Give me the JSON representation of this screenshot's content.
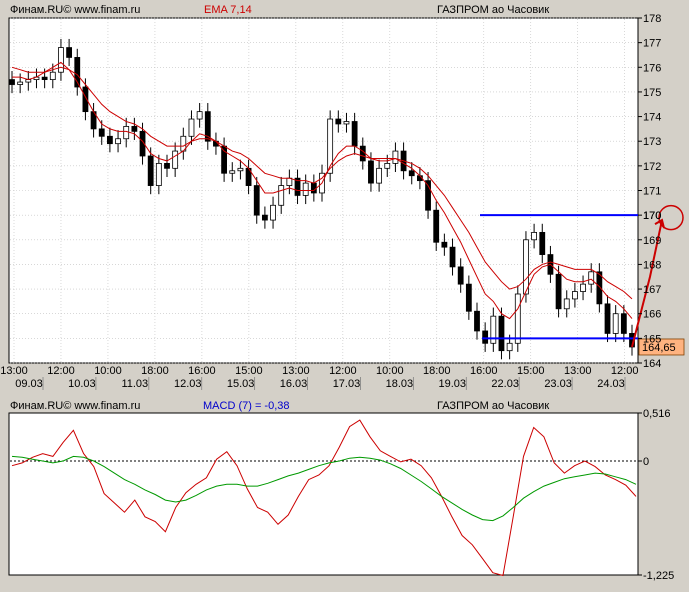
{
  "price_panel": {
    "source": "Финам.RU©  www.finam.ru",
    "indicator": "EMA 7,14",
    "instrument": "ГАЗПРОМ ао Часовик",
    "current_price": "164,65",
    "target_mark": "170"
  },
  "macd_panel": {
    "source": "Финам.RU©  www.finam.ru",
    "indicator": "MACD (7) = -0,38",
    "instrument": "ГАЗПРОМ ао Часовик"
  },
  "colors": {
    "background": "#ffffff",
    "frame": "#d4d0c8",
    "accent": "#cc0000",
    "blue": "#0000ff",
    "green": "#009900"
  },
  "chart_data": [
    {
      "type": "candlestick",
      "title": "ГАЗПРОМ ао Часовик",
      "indicators": [
        "EMA 7",
        "EMA 14"
      ],
      "ylim": [
        164,
        178
      ],
      "yticks": [
        "164",
        "165",
        "166",
        "167",
        "168",
        "169",
        "170",
        "171",
        "172",
        "173",
        "174",
        "175",
        "176",
        "177",
        "178"
      ],
      "xticks_time": [
        "13:00",
        "12:00",
        "10:00",
        "18:00",
        "16:00",
        "15:00",
        "13:00",
        "12:00",
        "10:00",
        "18:00",
        "16:00",
        "15:00",
        "13:00",
        "12:00"
      ],
      "xticks_date": [
        "09.03",
        "10.03",
        "11.03",
        "12.03",
        "15.03",
        "16.03",
        "17.03",
        "18.03",
        "19.03",
        "22.03",
        "23.03",
        "24.03"
      ],
      "close": [
        175.3,
        175.4,
        175.5,
        175.6,
        175.5,
        175.8,
        176.8,
        176.4,
        175.2,
        174.2,
        173.5,
        173.2,
        172.9,
        173.1,
        173.6,
        173.4,
        172.4,
        171.2,
        172.1,
        171.9,
        172.6,
        173.2,
        173.9,
        174.2,
        173.0,
        172.8,
        171.7,
        171.8,
        171.9,
        171.2,
        170.0,
        169.8,
        170.4,
        171.2,
        171.5,
        170.8,
        171.3,
        170.9,
        171.7,
        173.9,
        173.7,
        173.8,
        172.8,
        172.2,
        171.3,
        171.9,
        172.1,
        172.6,
        171.8,
        171.6,
        171.4,
        170.2,
        168.9,
        168.7,
        167.9,
        167.2,
        166.1,
        165.3,
        164.8,
        165.9,
        164.5,
        164.8,
        166.8,
        169.0,
        169.3,
        168.4,
        167.6,
        166.2,
        166.6,
        166.9,
        167.2,
        167.7,
        166.4,
        165.2,
        166.0,
        165.2,
        164.65
      ],
      "ema_fast": [
        175.6,
        175.6,
        175.5,
        175.6,
        175.8,
        176.0,
        176.2,
        175.9,
        175.4,
        174.8,
        174.2,
        173.7,
        173.5,
        173.4,
        173.4,
        173.3,
        173.0,
        172.5,
        172.3,
        172.2,
        172.4,
        172.6,
        173.0,
        173.3,
        173.2,
        173.0,
        172.6,
        172.4,
        172.2,
        171.9,
        171.4,
        170.9,
        170.9,
        171.0,
        171.1,
        171.0,
        171.0,
        171.0,
        171.3,
        172.0,
        172.5,
        172.8,
        172.8,
        172.6,
        172.3,
        172.2,
        172.2,
        172.3,
        172.1,
        171.9,
        171.6,
        171.2,
        170.6,
        170.1,
        169.5,
        168.9,
        168.2,
        167.5,
        166.8,
        166.5,
        166.0,
        165.8,
        166.2,
        166.9,
        167.6,
        167.9,
        168.0,
        167.7,
        167.4,
        167.3,
        167.3,
        167.4,
        167.1,
        166.7,
        166.5,
        166.2,
        165.8
      ],
      "ema_slow": [
        176.0,
        175.9,
        175.8,
        175.8,
        175.8,
        175.9,
        176.0,
        175.9,
        175.7,
        175.3,
        174.9,
        174.5,
        174.2,
        174.0,
        173.8,
        173.7,
        173.5,
        173.2,
        173.0,
        172.8,
        172.8,
        172.8,
        173.0,
        173.1,
        173.1,
        173.0,
        172.8,
        172.6,
        172.5,
        172.3,
        172.0,
        171.7,
        171.6,
        171.5,
        171.5,
        171.4,
        171.4,
        171.3,
        171.5,
        171.9,
        172.2,
        172.4,
        172.5,
        172.4,
        172.3,
        172.3,
        172.3,
        172.3,
        172.2,
        172.1,
        171.9,
        171.6,
        171.2,
        170.8,
        170.3,
        169.8,
        169.3,
        168.7,
        168.1,
        167.7,
        167.3,
        167.0,
        167.1,
        167.4,
        167.8,
        168.0,
        168.1,
        168.0,
        167.9,
        167.8,
        167.8,
        167.8,
        167.6,
        167.3,
        167.1,
        166.9,
        166.6
      ],
      "horizontal_levels": [
        170.0,
        165.0
      ],
      "current_value": 164.65
    },
    {
      "type": "line",
      "title": "MACD (7) = -0,38",
      "ylim": [
        -1.225,
        0.516
      ],
      "yticks": [
        "0,516",
        "0",
        "-1,225"
      ],
      "zero_line": true,
      "series": [
        {
          "name": "MACD",
          "color": "#cc0000",
          "values": [
            -0.05,
            -0.02,
            0.04,
            0.08,
            0.05,
            0.2,
            0.33,
            0.08,
            -0.06,
            -0.35,
            -0.45,
            -0.55,
            -0.42,
            -0.6,
            -0.65,
            -0.76,
            -0.5,
            -0.34,
            -0.25,
            -0.18,
            0.02,
            0.1,
            -0.05,
            -0.3,
            -0.5,
            -0.55,
            -0.68,
            -0.58,
            -0.38,
            -0.2,
            -0.15,
            -0.05,
            0.15,
            0.37,
            0.44,
            0.26,
            0.11,
            0.05,
            -0.01,
            0.02,
            -0.05,
            -0.18,
            -0.38,
            -0.6,
            -0.8,
            -0.9,
            -1.05,
            -1.2,
            -1.23,
            -0.6,
            0.05,
            0.36,
            0.26,
            -0.02,
            -0.13,
            -0.05,
            0.0,
            -0.06,
            -0.15,
            -0.2,
            -0.26,
            -0.38
          ]
        },
        {
          "name": "Signal",
          "color": "#009900",
          "values": [
            0.05,
            0.04,
            0.02,
            0.0,
            -0.02,
            0.0,
            0.05,
            0.04,
            0.0,
            -0.06,
            -0.13,
            -0.2,
            -0.25,
            -0.31,
            -0.36,
            -0.42,
            -0.44,
            -0.42,
            -0.37,
            -0.31,
            -0.27,
            -0.25,
            -0.25,
            -0.27,
            -0.27,
            -0.24,
            -0.2,
            -0.16,
            -0.13,
            -0.09,
            -0.05,
            -0.02,
            0.0,
            0.03,
            0.04,
            0.03,
            0.01,
            -0.03,
            -0.08,
            -0.15,
            -0.22,
            -0.3,
            -0.38,
            -0.45,
            -0.52,
            -0.58,
            -0.63,
            -0.64,
            -0.59,
            -0.5,
            -0.4,
            -0.33,
            -0.27,
            -0.23,
            -0.19,
            -0.17,
            -0.15,
            -0.13,
            -0.14,
            -0.17,
            -0.2,
            -0.25
          ]
        }
      ]
    }
  ]
}
